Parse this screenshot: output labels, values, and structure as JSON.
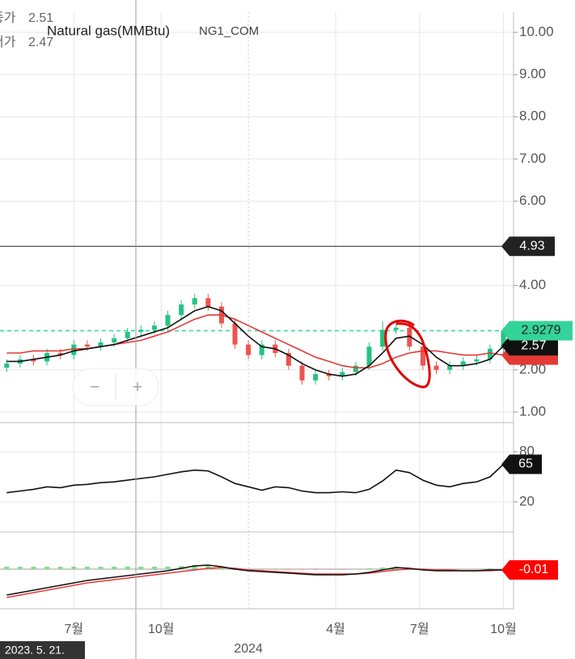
{
  "ui": {
    "info": [
      {
        "label": "종가",
        "value": "2.51"
      },
      {
        "label": "저가",
        "value": "2.47"
      }
    ],
    "zoom_out": "−",
    "zoom_in": "+",
    "crosshair_date": "2023. 5. 21."
  },
  "chart_data": [
    {
      "type": "candlestick",
      "title": "Natural gas(MMBtu)",
      "subtitle": "NG1_COM",
      "x": [
        1,
        3,
        5,
        7,
        9,
        11,
        13,
        15,
        17,
        19,
        21,
        23,
        25,
        27,
        29,
        31,
        33,
        35,
        37,
        39,
        41,
        43,
        45,
        47,
        49,
        51,
        53,
        55,
        57,
        59,
        61,
        63,
        65,
        67,
        69,
        71,
        73,
        75
      ],
      "open": [
        2.05,
        2.15,
        2.25,
        2.2,
        2.4,
        2.35,
        2.6,
        2.55,
        2.65,
        2.75,
        2.9,
        2.95,
        3.05,
        3.3,
        3.55,
        3.7,
        3.5,
        3.1,
        2.6,
        2.35,
        2.6,
        2.4,
        2.1,
        1.75,
        1.9,
        1.85,
        1.95,
        2.1,
        2.55,
        2.95,
        3.0,
        2.55,
        2.1,
        2.0,
        2.1,
        2.2,
        2.25,
        2.5
      ],
      "high": [
        2.25,
        2.35,
        2.35,
        2.5,
        2.5,
        2.7,
        2.7,
        2.75,
        2.85,
        3.0,
        3.05,
        3.15,
        3.4,
        3.65,
        3.8,
        3.8,
        3.6,
        3.2,
        2.7,
        2.7,
        2.7,
        2.5,
        2.2,
        2.0,
        2.0,
        2.05,
        2.2,
        2.65,
        3.15,
        3.1,
        3.1,
        2.65,
        2.2,
        2.2,
        2.3,
        2.35,
        2.6,
        3.0
      ],
      "low": [
        1.95,
        2.05,
        2.1,
        2.1,
        2.25,
        2.25,
        2.45,
        2.45,
        2.55,
        2.65,
        2.8,
        2.85,
        2.95,
        3.2,
        3.45,
        3.4,
        3.0,
        2.5,
        2.25,
        2.25,
        2.3,
        2.0,
        1.65,
        1.65,
        1.75,
        1.75,
        1.85,
        2.0,
        2.45,
        2.85,
        2.45,
        2.0,
        1.9,
        1.9,
        2.0,
        2.1,
        2.15,
        2.4
      ],
      "close": [
        2.15,
        2.25,
        2.2,
        2.4,
        2.35,
        2.6,
        2.55,
        2.65,
        2.75,
        2.9,
        2.95,
        3.05,
        3.3,
        3.55,
        3.7,
        3.5,
        3.1,
        2.6,
        2.35,
        2.6,
        2.4,
        2.1,
        1.75,
        1.9,
        1.85,
        1.95,
        2.1,
        2.55,
        2.95,
        3.0,
        2.55,
        2.1,
        2.0,
        2.1,
        2.2,
        2.25,
        2.5,
        2.93
      ],
      "up_color": "#26c281",
      "down_color": "#ef5350",
      "series": [
        {
          "color": "#111111",
          "values": [
            2.2,
            2.2,
            2.25,
            2.3,
            2.35,
            2.45,
            2.5,
            2.55,
            2.6,
            2.7,
            2.8,
            2.9,
            3.0,
            3.2,
            3.4,
            3.5,
            3.4,
            3.1,
            2.8,
            2.55,
            2.5,
            2.35,
            2.15,
            2.0,
            1.9,
            1.85,
            1.9,
            2.1,
            2.4,
            2.75,
            2.8,
            2.6,
            2.3,
            2.1,
            2.1,
            2.15,
            2.25,
            2.57
          ]
        },
        {
          "color": "#e53935",
          "values": [
            2.4,
            2.4,
            2.45,
            2.45,
            2.45,
            2.5,
            2.5,
            2.55,
            2.6,
            2.65,
            2.7,
            2.8,
            2.9,
            3.05,
            3.2,
            3.3,
            3.3,
            3.2,
            3.05,
            2.9,
            2.75,
            2.6,
            2.45,
            2.3,
            2.2,
            2.1,
            2.05,
            2.05,
            2.15,
            2.3,
            2.4,
            2.45,
            2.45,
            2.4,
            2.35,
            2.35,
            2.4,
            2.35
          ]
        }
      ],
      "levels": [
        {
          "value": 4.93,
          "color": "#222222"
        },
        {
          "value": 2.9279,
          "color": "#34d399",
          "dashed": true
        }
      ],
      "xlim": [
        0,
        76.5
      ],
      "xticks": [
        {
          "value": 11,
          "label": "7월"
        },
        {
          "value": 24,
          "label": "10월"
        },
        {
          "value": 37,
          "label": "2024"
        },
        {
          "value": 50,
          "label": "4월"
        },
        {
          "value": 62.5,
          "label": "7월"
        },
        {
          "value": 75,
          "label": "10월"
        }
      ],
      "ylim": [
        0.75,
        10.48
      ],
      "yticks": [
        {
          "value": 1,
          "label": "1.00"
        },
        {
          "value": 2,
          "label": "2.00"
        },
        {
          "value": 4,
          "label": "4.00"
        },
        {
          "value": 6,
          "label": "6.00"
        },
        {
          "value": 7,
          "label": "7.00"
        },
        {
          "value": 8,
          "label": "8.00"
        },
        {
          "value": 9,
          "label": "9.00"
        },
        {
          "value": 10,
          "label": "10.00"
        }
      ],
      "grid": true
    },
    {
      "type": "line",
      "series": [
        {
          "color": "#111111",
          "values": [
            31,
            33,
            35,
            38,
            37,
            40,
            41,
            43,
            44,
            46,
            48,
            50,
            53,
            56,
            58,
            57,
            50,
            42,
            38,
            34,
            38,
            37,
            33,
            31,
            31,
            32,
            31,
            35,
            45,
            58,
            55,
            46,
            40,
            38,
            42,
            44,
            50,
            65
          ]
        }
      ],
      "ylim": [
        -14,
        112
      ],
      "yticks": [
        20,
        80
      ],
      "grid": true
    },
    {
      "type": "macd",
      "series": [
        {
          "color": "#111111",
          "values": [
            -0.32,
            -0.29,
            -0.26,
            -0.23,
            -0.2,
            -0.17,
            -0.14,
            -0.12,
            -0.1,
            -0.08,
            -0.06,
            -0.04,
            -0.02,
            0.01,
            0.04,
            0.05,
            0.03,
            0.0,
            -0.02,
            -0.03,
            -0.04,
            -0.05,
            -0.06,
            -0.07,
            -0.07,
            -0.07,
            -0.06,
            -0.04,
            -0.01,
            0.02,
            0.01,
            -0.01,
            -0.02,
            -0.02,
            -0.02,
            -0.02,
            -0.01,
            -0.01
          ]
        },
        {
          "color": "#e53935",
          "values": [
            -0.35,
            -0.32,
            -0.29,
            -0.26,
            -0.23,
            -0.2,
            -0.17,
            -0.15,
            -0.13,
            -0.11,
            -0.09,
            -0.07,
            -0.05,
            -0.03,
            -0.01,
            0.01,
            0.02,
            0.01,
            -0.01,
            -0.02,
            -0.03,
            -0.04,
            -0.05,
            -0.06,
            -0.06,
            -0.06,
            -0.06,
            -0.05,
            -0.03,
            -0.01,
            0.0,
            0.0,
            -0.01,
            -0.01,
            -0.02,
            -0.02,
            -0.02,
            -0.01
          ]
        }
      ],
      "histogram": [
        0.03,
        0.03,
        0.03,
        0.03,
        0.03,
        0.03,
        0.03,
        0.03,
        0.03,
        0.03,
        0.03,
        0.03,
        0.03,
        0.04,
        0.05,
        0.04,
        0.01,
        -0.01,
        -0.01,
        -0.01,
        -0.01,
        -0.01,
        -0.01,
        -0.01,
        -0.01,
        -0.01,
        0.0,
        0.01,
        0.02,
        0.03,
        0.01,
        -0.01,
        -0.01,
        -0.01,
        0.0,
        0.0,
        0.01,
        0.0
      ],
      "hist_up_color": "#7ee08a",
      "hist_down_color": "#f4a0a0",
      "ylim": [
        -0.49,
        0.45
      ]
    }
  ]
}
